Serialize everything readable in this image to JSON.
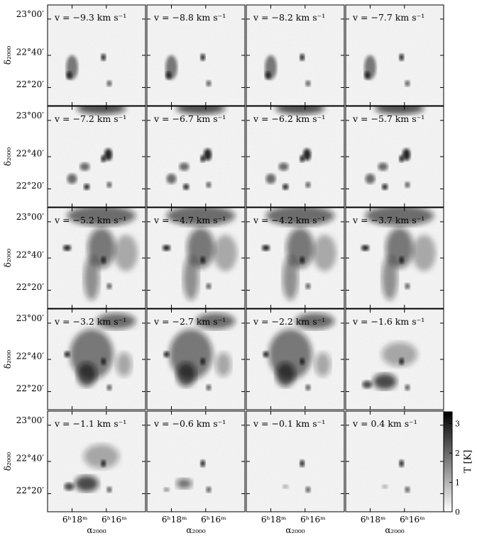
{
  "figure": {
    "panels": [
      {
        "velocity": "v = −9.3 km s⁻¹",
        "v": -9.3
      },
      {
        "velocity": "v = −8.8 km s⁻¹",
        "v": -8.8
      },
      {
        "velocity": "v = −8.2 km s⁻¹",
        "v": -8.2
      },
      {
        "velocity": "v = −7.7 km s⁻¹",
        "v": -7.7
      },
      {
        "velocity": "v = −7.2 km s⁻¹",
        "v": -7.2
      },
      {
        "velocity": "v = −6.7 km s⁻¹",
        "v": -6.7
      },
      {
        "velocity": "v = −6.2 km s⁻¹",
        "v": -6.2
      },
      {
        "velocity": "v = −5.7 km s⁻¹",
        "v": -5.7
      },
      {
        "velocity": "v = −5.2 km s⁻¹",
        "v": -5.2
      },
      {
        "velocity": "v = −4.7 km s⁻¹",
        "v": -4.7
      },
      {
        "velocity": "v = −4.2 km s⁻¹",
        "v": -4.2
      },
      {
        "velocity": "v = −3.7 km s⁻¹",
        "v": -3.7
      },
      {
        "velocity": "v = −3.2 km s⁻¹",
        "v": -3.2
      },
      {
        "velocity": "v = −2.7 km s⁻¹",
        "v": -2.7
      },
      {
        "velocity": "v = −2.2 km s⁻¹",
        "v": -2.2
      },
      {
        "velocity": "v = −1.6 km s⁻¹",
        "v": -1.6
      },
      {
        "velocity": "v = −1.1 km s⁻¹",
        "v": -1.1
      },
      {
        "velocity": "v = −0.6 km s⁻¹",
        "v": -0.6
      },
      {
        "velocity": "v = −0.1 km s⁻¹",
        "v": -0.1
      },
      {
        "velocity": "v = 0.4 km s⁻¹",
        "v": 0.4
      }
    ],
    "dec_ticks": [
      "23°00′",
      "22°40′",
      "22°20′"
    ],
    "ra_ticks": [
      "6ʰ18ᵐ",
      "6ʰ16ᵐ"
    ],
    "dec_axis_label": "δ₂₀₀₀",
    "ra_axis_label": "α₂₀₀₀",
    "colorbar": {
      "label": "T [K]",
      "ticks": [
        "0",
        "1",
        "2",
        "3"
      ],
      "min": 0,
      "max": 3.4,
      "colors": [
        "#ffffff",
        "#000000"
      ]
    }
  }
}
